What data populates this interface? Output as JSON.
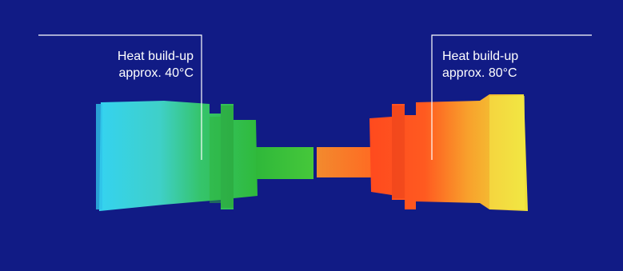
{
  "annotations": {
    "left": {
      "line1": "Heat build-up",
      "line2": "approx. 40°C"
    },
    "right": {
      "line1": "Heat build-up",
      "line2": "approx. 80°C"
    }
  },
  "colors": {
    "background": "#111b85",
    "annotation_line": "#ffffff",
    "cool": "#36c8f0",
    "warm": "#2fc23a",
    "hot": "#ff4a1e",
    "very_hot": "#f0e83a"
  }
}
